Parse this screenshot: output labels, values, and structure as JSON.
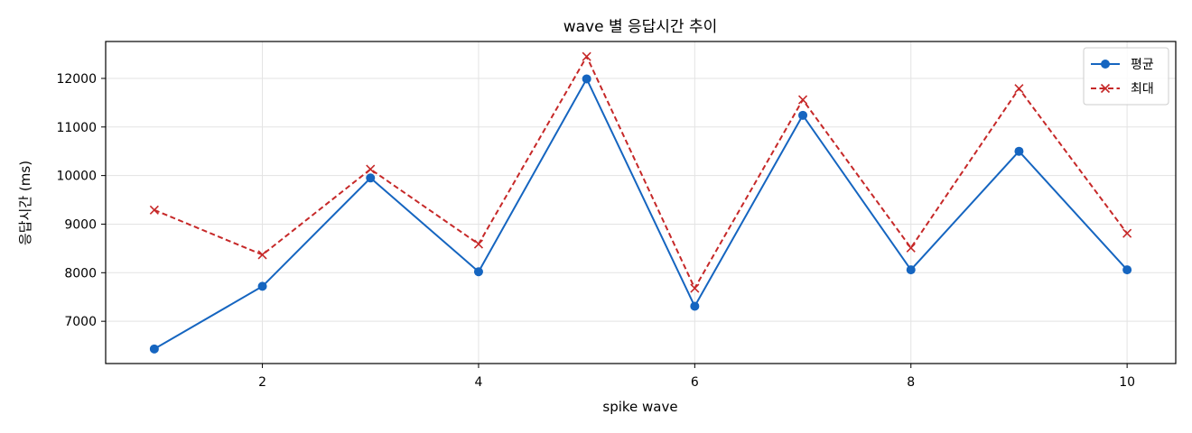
{
  "chart_data": {
    "type": "line",
    "title": "wave 별 응답시간 추이",
    "xlabel": "spike wave",
    "ylabel": "응답시간 (ms)",
    "x": [
      1,
      2,
      3,
      4,
      5,
      6,
      7,
      8,
      9,
      10
    ],
    "xlim": [
      0.55,
      10.45
    ],
    "ylim": [
      6130,
      12760
    ],
    "xticks": [
      2,
      4,
      6,
      8,
      10
    ],
    "yticks": [
      7000,
      8000,
      9000,
      10000,
      11000,
      12000
    ],
    "grid": true,
    "legend_position": "top-right",
    "series": [
      {
        "name": "평균",
        "color": "#1565c0",
        "line_style": "solid",
        "marker": "circle",
        "values": [
          6430,
          7720,
          9950,
          8020,
          11990,
          7310,
          11240,
          8060,
          10500,
          8060
        ]
      },
      {
        "name": "최대",
        "color": "#c62828",
        "line_style": "dashed",
        "marker": "x",
        "values": [
          9290,
          8370,
          10130,
          8590,
          12450,
          7680,
          11560,
          8510,
          11790,
          8810
        ]
      }
    ]
  }
}
